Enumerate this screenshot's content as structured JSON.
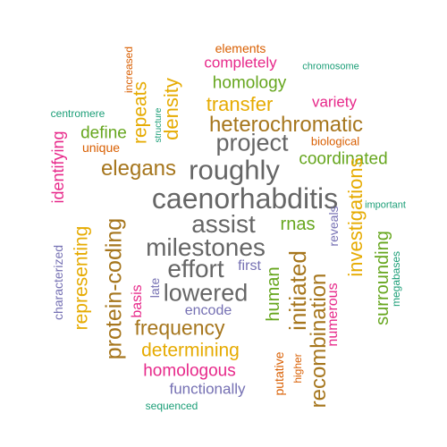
{
  "palette": {
    "purple": "#7570b3",
    "orange": "#d95f02",
    "teal": "#1b9e77",
    "pink": "#e7298a",
    "green": "#66a61e",
    "gold": "#e6ab02",
    "brown": "#a6761d",
    "gray": "#666666"
  },
  "words": [
    {
      "text": "elements",
      "color": "orange"
    },
    {
      "text": "completely",
      "color": "pink"
    },
    {
      "text": "chromosome",
      "color": "teal"
    },
    {
      "text": "increased",
      "color": "orange"
    },
    {
      "text": "homology",
      "color": "green"
    },
    {
      "text": "repeats",
      "color": "gold"
    },
    {
      "text": "density",
      "color": "gold"
    },
    {
      "text": "structure",
      "color": "teal"
    },
    {
      "text": "transfer",
      "color": "gold"
    },
    {
      "text": "variety",
      "color": "pink"
    },
    {
      "text": "centromere",
      "color": "teal"
    },
    {
      "text": "heterochromatic",
      "color": "brown"
    },
    {
      "text": "define",
      "color": "green"
    },
    {
      "text": "unique",
      "color": "orange"
    },
    {
      "text": "project",
      "color": "gray"
    },
    {
      "text": "biological",
      "color": "orange"
    },
    {
      "text": "identifying",
      "color": "pink"
    },
    {
      "text": "coordinated",
      "color": "green"
    },
    {
      "text": "elegans",
      "color": "brown"
    },
    {
      "text": "roughly",
      "color": "gray"
    },
    {
      "text": "investigations",
      "color": "gold"
    },
    {
      "text": "caenorhabditis",
      "color": "gray"
    },
    {
      "text": "important",
      "color": "teal"
    },
    {
      "text": "representing",
      "color": "gold"
    },
    {
      "text": "protein-coding",
      "color": "brown"
    },
    {
      "text": "assist",
      "color": "gray"
    },
    {
      "text": "rnas",
      "color": "green"
    },
    {
      "text": "reveals",
      "color": "purple"
    },
    {
      "text": "milestones",
      "color": "gray"
    },
    {
      "text": "surrounding",
      "color": "green"
    },
    {
      "text": "characterized",
      "color": "purple"
    },
    {
      "text": "effort",
      "color": "gray"
    },
    {
      "text": "first",
      "color": "purple"
    },
    {
      "text": "megabases",
      "color": "teal"
    },
    {
      "text": "basis",
      "color": "pink"
    },
    {
      "text": "late",
      "color": "purple"
    },
    {
      "text": "initiated",
      "color": "brown"
    },
    {
      "text": "human",
      "color": "green"
    },
    {
      "text": "numerous",
      "color": "pink"
    },
    {
      "text": "lowered",
      "color": "gray"
    },
    {
      "text": "encode",
      "color": "purple"
    },
    {
      "text": "recombination",
      "color": "brown"
    },
    {
      "text": "frequency",
      "color": "brown"
    },
    {
      "text": "determining",
      "color": "gold"
    },
    {
      "text": "putative",
      "color": "orange"
    },
    {
      "text": "higher",
      "color": "orange"
    },
    {
      "text": "homologous",
      "color": "pink"
    },
    {
      "text": "functionally",
      "color": "purple"
    },
    {
      "text": "sequenced",
      "color": "teal"
    }
  ]
}
